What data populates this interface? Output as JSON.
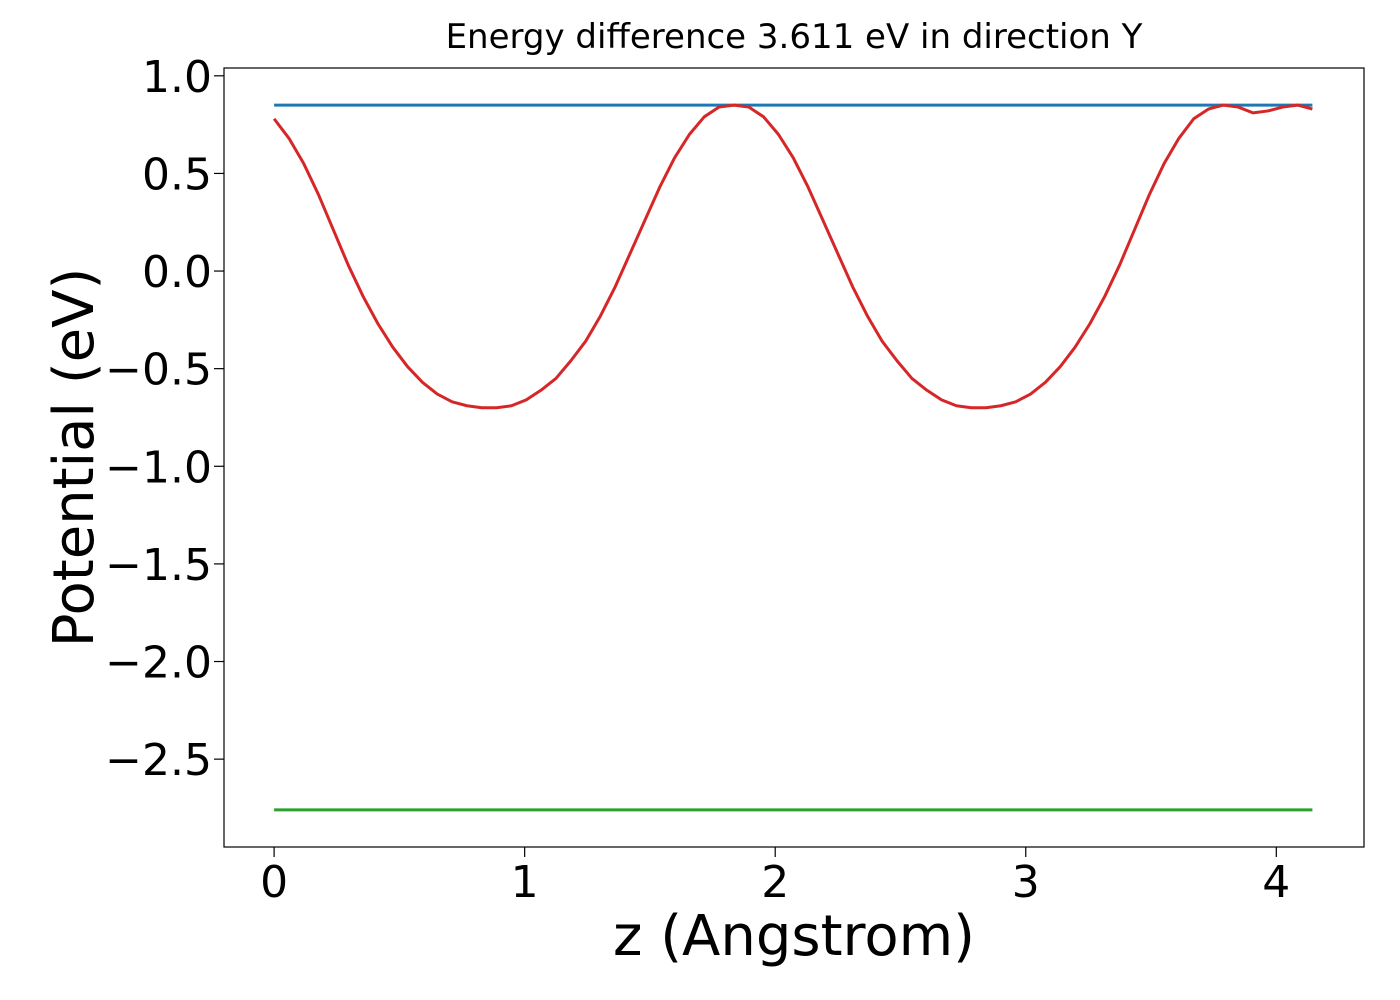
{
  "chart_data": {
    "type": "line",
    "title": "Energy difference 3.611 eV in direction Y",
    "xlabel": "z (Angstrom)",
    "ylabel": "Potential (eV)",
    "xlim": [
      -0.2,
      4.35
    ],
    "ylim": [
      -2.95,
      1.04
    ],
    "xticks": [
      0,
      1,
      2,
      3,
      4
    ],
    "xtick_labels": [
      "0",
      "1",
      "2",
      "3",
      "4"
    ],
    "yticks": [
      1.0,
      0.5,
      0.0,
      -0.5,
      -1.0,
      -1.5,
      -2.0,
      -2.5
    ],
    "ytick_labels": [
      "1.0",
      "0.5",
      "0.0",
      "−0.5",
      "−1.0",
      "−1.5",
      "−2.0",
      "−2.5"
    ],
    "grid": false,
    "series": [
      {
        "role": "potential",
        "color": "#d62728",
        "x": [
          0.0,
          0.0592,
          0.1184,
          0.1776,
          0.2368,
          0.296,
          0.3552,
          0.4144,
          0.4736,
          0.5328,
          0.592,
          0.6512,
          0.7104,
          0.7696,
          0.8288,
          0.888,
          0.9472,
          1.0064,
          1.0656,
          1.1248,
          1.184,
          1.2432,
          1.3024,
          1.3616,
          1.4208,
          1.48,
          1.5392,
          1.5984,
          1.6576,
          1.7168,
          1.776,
          1.8352,
          1.8944,
          1.9536,
          2.0128,
          2.072,
          2.1312,
          2.1904,
          2.2496,
          2.3088,
          2.368,
          2.4272,
          2.4864,
          2.5456,
          2.6048,
          2.664,
          2.7232,
          2.7824,
          2.8416,
          2.9008,
          2.96,
          3.0192,
          3.0784,
          3.1376,
          3.1968,
          3.256,
          3.3152,
          3.3744,
          3.4336,
          3.4928,
          3.552,
          3.6112,
          3.6704,
          3.7296,
          3.7888,
          3.848,
          3.9072,
          3.9664,
          4.0256,
          4.0848,
          4.144
        ],
        "y": [
          0.78,
          0.68,
          0.55,
          0.39,
          0.21,
          0.03,
          -0.13,
          -0.27,
          -0.39,
          -0.49,
          -0.57,
          -0.63,
          -0.67,
          -0.69,
          -0.7,
          -0.7,
          -0.69,
          -0.66,
          -0.61,
          -0.55,
          -0.46,
          -0.36,
          -0.23,
          -0.08,
          0.09,
          0.26,
          0.43,
          0.58,
          0.7,
          0.79,
          0.84,
          0.85,
          0.84,
          0.79,
          0.7,
          0.58,
          0.43,
          0.26,
          0.09,
          -0.08,
          -0.23,
          -0.36,
          -0.46,
          -0.55,
          -0.61,
          -0.66,
          -0.69,
          -0.7,
          -0.7,
          -0.69,
          -0.67,
          -0.63,
          -0.57,
          -0.49,
          -0.39,
          -0.27,
          -0.13,
          0.03,
          0.21,
          0.39,
          0.55,
          0.68,
          0.78,
          0.83,
          0.85,
          0.84,
          0.81,
          0.82,
          0.84,
          0.85,
          0.83
        ]
      },
      {
        "role": "upper-level",
        "color": "#1f77b4",
        "x": [
          0.0,
          4.144
        ],
        "y": [
          0.85,
          0.85
        ]
      },
      {
        "role": "lower-level",
        "color": "#2ca02c",
        "x": [
          0.0,
          4.144
        ],
        "y": [
          -2.76,
          -2.76
        ]
      }
    ]
  }
}
